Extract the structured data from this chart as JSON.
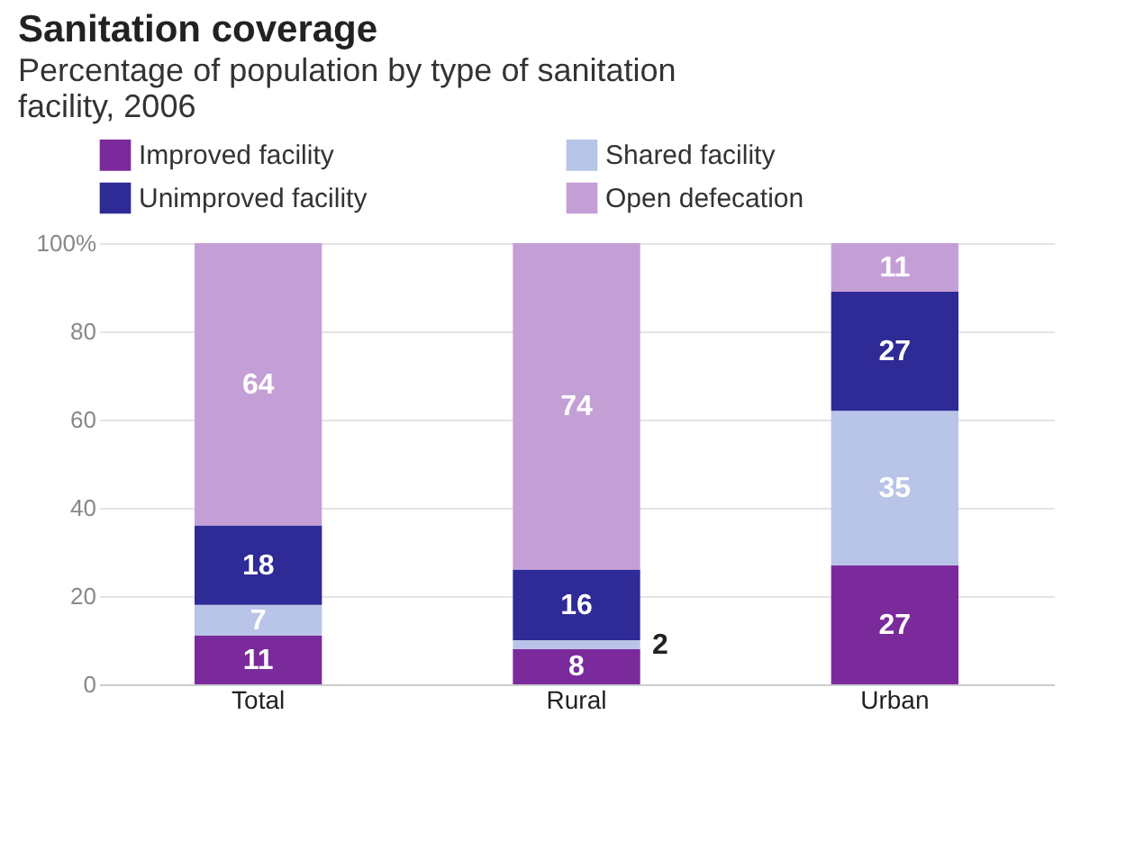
{
  "chart_data": {
    "type": "bar",
    "title": "Sanitation coverage",
    "subtitle": "Percentage of population by type of sanitation facility, 2006",
    "categories": [
      "Total",
      "Rural",
      "Urban"
    ],
    "stacked": true,
    "series": [
      {
        "name": "Improved facility",
        "color": "#7b2a9c",
        "values": [
          11,
          8,
          27
        ]
      },
      {
        "name": "Shared facility",
        "color": "#b8c4e8",
        "values": [
          7,
          2,
          35
        ]
      },
      {
        "name": "Unimproved facility",
        "color": "#2e2a96",
        "values": [
          18,
          16,
          27
        ]
      },
      {
        "name": "Open defecation",
        "color": "#c49fd6",
        "values": [
          64,
          74,
          11
        ]
      }
    ],
    "ylim": [
      0,
      100
    ],
    "yticks": [
      0,
      20,
      40,
      60,
      80,
      {
        "value": 100,
        "label": "100%"
      }
    ],
    "grid": "y",
    "legend": "top",
    "data_labels": true
  }
}
